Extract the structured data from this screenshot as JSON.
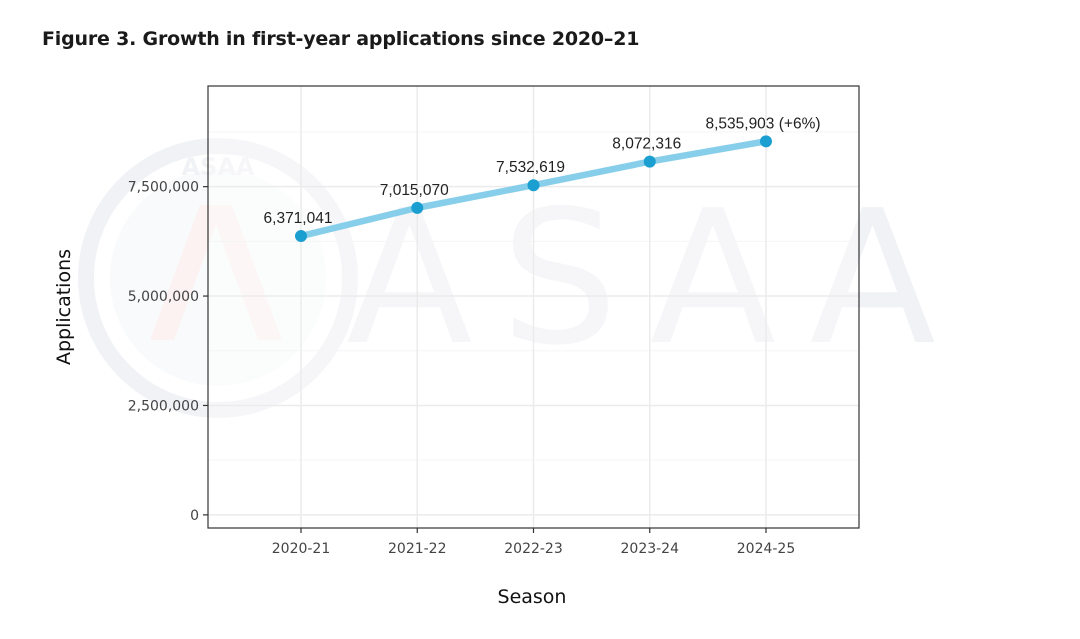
{
  "figure": {
    "title": "Figure 3. Growth in first-year applications since 2020–21",
    "watermark_text": "ASAA",
    "watermark_badge_text": "ASAA"
  },
  "chart_data": {
    "type": "line",
    "categories": [
      "2020-21",
      "2021-22",
      "2022-23",
      "2023-24",
      "2024-25"
    ],
    "series": [
      {
        "values": [
          6371041,
          7015070,
          7532619,
          8072316,
          8535903
        ],
        "labels": [
          "6,371,041",
          "7,015,070",
          "7,532,619",
          "8,072,316",
          "8,535,903 (+6%)"
        ]
      }
    ],
    "xlabel": "Season",
    "ylabel": "Applications",
    "ylim": [
      -300000,
      9800000
    ],
    "yticks": [
      0,
      2500000,
      5000000,
      7500000
    ],
    "ytick_labels": [
      "0",
      "2,500,000",
      "5,000,000",
      "7,500,000"
    ],
    "grid": true,
    "legend": "none",
    "colors": {
      "line": "#87ceeb",
      "point": "#1a9fd0",
      "grid_major": "#ebebeb",
      "grid_minor": "#f5f5f5",
      "panel_border": "#333333"
    }
  }
}
